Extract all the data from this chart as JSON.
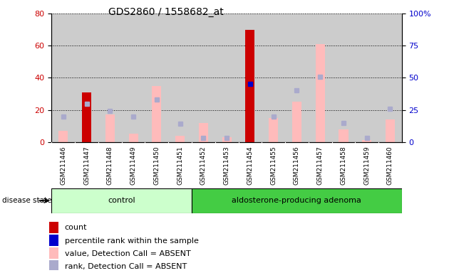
{
  "title": "GDS2860 / 1558682_at",
  "samples": [
    "GSM211446",
    "GSM211447",
    "GSM211448",
    "GSM211449",
    "GSM211450",
    "GSM211451",
    "GSM211452",
    "GSM211453",
    "GSM211454",
    "GSM211455",
    "GSM211456",
    "GSM211457",
    "GSM211458",
    "GSM211459",
    "GSM211460"
  ],
  "count_values": [
    0,
    31,
    0,
    0,
    0,
    0,
    0,
    0,
    70,
    0,
    0,
    0,
    0,
    0,
    0
  ],
  "percentile_rank": [
    null,
    null,
    null,
    null,
    null,
    null,
    null,
    null,
    45,
    null,
    null,
    null,
    null,
    null,
    null
  ],
  "absent_value": [
    7,
    18,
    17,
    5,
    35,
    4,
    12,
    3,
    null,
    15,
    25,
    61,
    8,
    1,
    14
  ],
  "absent_rank": [
    20,
    30,
    24,
    20,
    33,
    14,
    3,
    3,
    null,
    20,
    40,
    51,
    15,
    3,
    26
  ],
  "n_control": 6,
  "n_adenoma": 9,
  "ylim_left": [
    0,
    80
  ],
  "ylim_right": [
    0,
    100
  ],
  "yticks_left": [
    0,
    20,
    40,
    60,
    80
  ],
  "yticks_right": [
    0,
    25,
    50,
    75,
    100
  ],
  "ytick_right_labels": [
    "0",
    "25",
    "50",
    "75",
    "100%"
  ],
  "color_count": "#cc0000",
  "color_percentile": "#0000cc",
  "color_absent_value": "#ffbbbb",
  "color_absent_rank": "#aaaacc",
  "color_control_bg": "#ccffcc",
  "color_adenoma_bg": "#44cc44",
  "color_plot_bg": "#cccccc",
  "legend_items": [
    {
      "color": "#cc0000",
      "label": "count"
    },
    {
      "color": "#0000cc",
      "label": "percentile rank within the sample"
    },
    {
      "color": "#ffbbbb",
      "label": "value, Detection Call = ABSENT"
    },
    {
      "color": "#aaaacc",
      "label": "rank, Detection Call = ABSENT"
    }
  ]
}
